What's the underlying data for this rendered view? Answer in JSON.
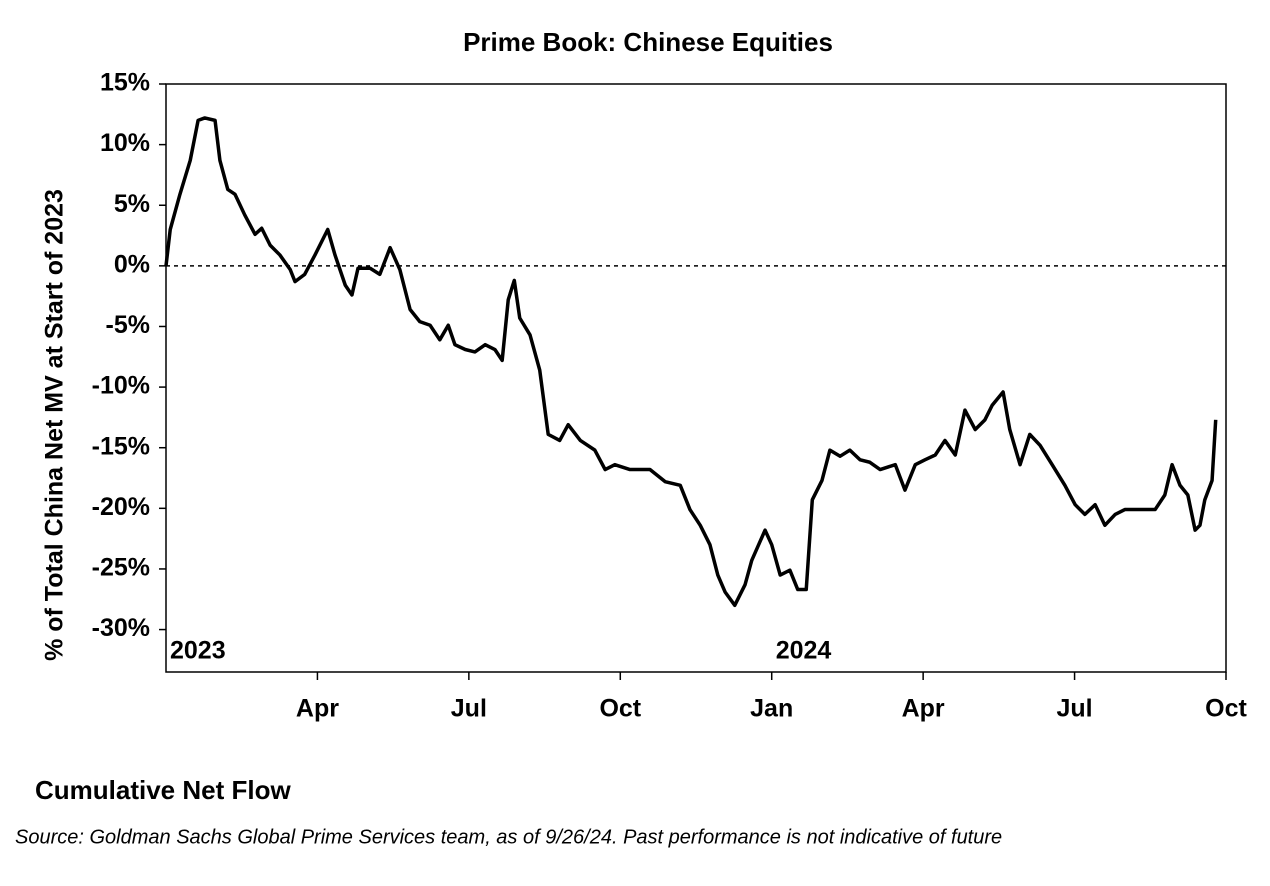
{
  "chart_data": {
    "type": "line",
    "title": "Prime Book: Chinese Equities",
    "ylabel": "% of Total China Net MV at Start of 2023",
    "subtitle_below": "Cumulative Net Flow",
    "source": "Source: Goldman Sachs Global Prime Services team,  as of 9/26/24. Past performance is not indicative of future",
    "xlim": [
      2023,
      2024.75
    ],
    "ylim": [
      -33.5,
      15
    ],
    "xticks": [
      {
        "value": 2023.25,
        "label": "Apr"
      },
      {
        "value": 2023.5,
        "label": "Jul"
      },
      {
        "value": 2023.75,
        "label": "Oct"
      },
      {
        "value": 2024,
        "label": "Jan"
      },
      {
        "value": 2024.25,
        "label": "Apr"
      },
      {
        "value": 2024.5,
        "label": "Jul"
      },
      {
        "value": 2024.75,
        "label": "Oct"
      }
    ],
    "yticks": [
      {
        "value": 15,
        "label": "15%"
      },
      {
        "value": 10,
        "label": "10%"
      },
      {
        "value": 5,
        "label": "5%"
      },
      {
        "value": 0,
        "label": "0%"
      },
      {
        "value": -5,
        "label": "-5%"
      },
      {
        "value": -10,
        "label": "-10%"
      },
      {
        "value": -15,
        "label": "-15%"
      },
      {
        "value": -20,
        "label": "-20%"
      },
      {
        "value": -25,
        "label": "-25%"
      },
      {
        "value": -30,
        "label": "-30%"
      }
    ],
    "annotations": [
      {
        "text": "2023",
        "x": 2023
      },
      {
        "text": "2024",
        "x": 2024
      }
    ],
    "reference_line": 0,
    "grid": false,
    "x": [
      2023.0,
      2023.007,
      2023.023,
      2023.04,
      2023.053,
      2023.064,
      2023.081,
      2023.089,
      2023.102,
      2023.114,
      2023.13,
      2023.147,
      2023.158,
      2023.172,
      2023.188,
      2023.205,
      2023.213,
      2023.229,
      2023.246,
      2023.267,
      2023.279,
      2023.296,
      2023.307,
      2023.317,
      2023.337,
      2023.353,
      2023.37,
      2023.386,
      2023.403,
      2023.419,
      2023.436,
      2023.452,
      2023.466,
      2023.477,
      2023.494,
      2023.51,
      2023.527,
      2023.543,
      2023.555,
      2023.565,
      2023.575,
      2023.584,
      2023.601,
      2023.617,
      2023.631,
      2023.65,
      2023.664,
      2023.684,
      2023.708,
      2023.725,
      2023.741,
      2023.766,
      2023.799,
      2023.824,
      2023.849,
      2023.865,
      2023.882,
      2023.898,
      2023.911,
      2023.923,
      2023.939,
      2023.956,
      2023.967,
      2023.989,
      2024.0,
      2024.014,
      2024.03,
      2024.043,
      2024.057,
      2024.067,
      2024.083,
      2024.096,
      2024.113,
      2024.129,
      2024.146,
      2024.162,
      2024.179,
      2024.204,
      2024.22,
      2024.237,
      2024.253,
      2024.27,
      2024.286,
      2024.303,
      2024.319,
      2024.336,
      2024.352,
      2024.364,
      2024.382,
      2024.393,
      2024.41,
      2024.426,
      2024.443,
      2024.463,
      2024.484,
      2024.501,
      2024.517,
      2024.534,
      2024.55,
      2024.567,
      2024.583,
      2024.608,
      2024.633,
      2024.649,
      2024.661,
      2024.674,
      2024.687,
      2024.699,
      2024.707,
      2024.715,
      2024.727,
      2024.733
    ],
    "series": [
      {
        "name": "Cumulative Net Flow",
        "color": "#000000",
        "values": [
          0,
          3,
          5.9,
          8.7,
          12,
          12.2,
          12,
          8.7,
          6.3,
          5.9,
          4.2,
          2.6,
          3.1,
          1.7,
          0.9,
          -0.3,
          -1.3,
          -0.7,
          0.9,
          3,
          0.9,
          -1.6,
          -2.4,
          -0.2,
          -0.2,
          -0.7,
          1.5,
          -0.3,
          -3.6,
          -4.6,
          -4.9,
          -6.1,
          -4.9,
          -6.5,
          -6.9,
          -7.1,
          -6.5,
          -6.9,
          -7.8,
          -2.8,
          -1.2,
          -4.3,
          -5.7,
          -8.6,
          -13.9,
          -14.4,
          -13.1,
          -14.4,
          -15.2,
          -16.8,
          -16.4,
          -16.8,
          -16.8,
          -17.8,
          -18.1,
          -20.1,
          -21.4,
          -23,
          -25.5,
          -26.9,
          -28,
          -26.3,
          -24.3,
          -21.8,
          -23,
          -25.5,
          -25.1,
          -26.7,
          -26.7,
          -19.3,
          -17.7,
          -15.2,
          -15.7,
          -15.2,
          -16,
          -16.2,
          -16.8,
          -16.4,
          -18.5,
          -16.4,
          -16,
          -15.6,
          -14.4,
          -15.6,
          -11.9,
          -13.5,
          -12.7,
          -11.5,
          -10.4,
          -13.5,
          -16.4,
          -13.9,
          -14.8,
          -16.4,
          -18.1,
          -19.7,
          -20.5,
          -19.7,
          -21.4,
          -20.5,
          -20.1,
          -20.1,
          -20.1,
          -18.9,
          -16.4,
          -18.1,
          -18.9,
          -21.8,
          -21.4,
          -19.3,
          -17.7,
          -12.7
        ]
      }
    ]
  }
}
